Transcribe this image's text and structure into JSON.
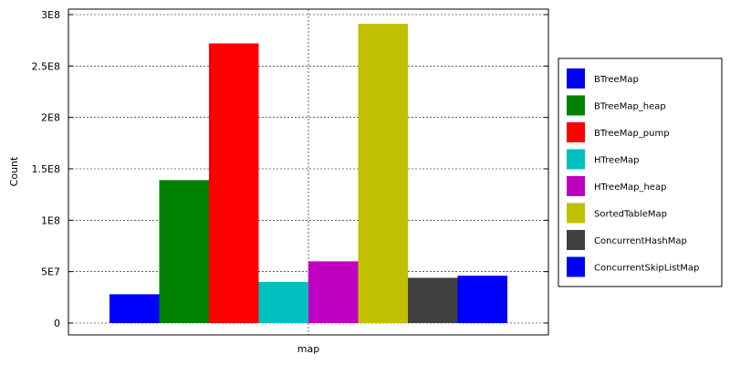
{
  "chart_data": {
    "type": "bar",
    "title": "",
    "xlabel": "",
    "ylabel": "Count",
    "categories": [
      "map"
    ],
    "ylim": [
      0,
      300000000
    ],
    "yticks": [
      0,
      50000000,
      100000000,
      150000000,
      200000000,
      250000000,
      300000000
    ],
    "ytick_labels": [
      "0",
      "5E7",
      "1E8",
      "1.5E8",
      "2E8",
      "2.5E8",
      "3E8"
    ],
    "grid": true,
    "legend_position": "right",
    "series": [
      {
        "name": "BTreeMap",
        "values": [
          28000000
        ],
        "color": "#0000ff"
      },
      {
        "name": "BTreeMap_heap",
        "values": [
          139000000
        ],
        "color": "#008000"
      },
      {
        "name": "BTreeMap_pump",
        "values": [
          272000000
        ],
        "color": "#ff0000"
      },
      {
        "name": "HTreeMap",
        "values": [
          40000000
        ],
        "color": "#00c0c0"
      },
      {
        "name": "HTreeMap_heap",
        "values": [
          60000000
        ],
        "color": "#c000c0"
      },
      {
        "name": "SortedTableMap",
        "values": [
          291000000
        ],
        "color": "#c0c000"
      },
      {
        "name": "ConcurrentHashMap",
        "values": [
          44000000
        ],
        "color": "#404040"
      },
      {
        "name": "ConcurrentSkipListMap",
        "values": [
          46000000
        ],
        "color": "#0000ff"
      }
    ]
  }
}
